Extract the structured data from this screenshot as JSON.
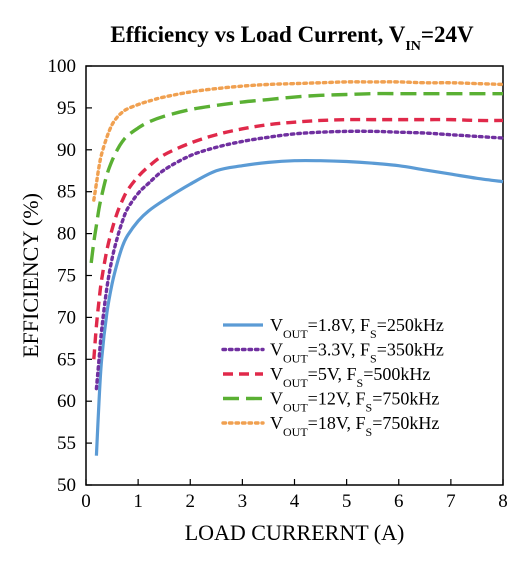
{
  "chart_data": {
    "type": "line",
    "title_parts": [
      "Efficiency vs Load Current, V",
      "IN",
      "=24V"
    ],
    "xlabel": "LOAD CURRERNT (A)",
    "ylabel": "EFFICIENCY (%)",
    "xlim": [
      0,
      8
    ],
    "ylim": [
      50,
      100
    ],
    "x_ticks": [
      0,
      1,
      2,
      3,
      4,
      5,
      6,
      7,
      8
    ],
    "y_ticks": [
      50,
      55,
      60,
      65,
      70,
      75,
      80,
      85,
      90,
      95,
      100
    ],
    "x_tick_labels": [
      "0",
      "1",
      "2",
      "3",
      "4",
      "5",
      "6",
      "7",
      "8"
    ],
    "y_tick_labels": [
      "50",
      "55",
      "60",
      "65",
      "70",
      "75",
      "80",
      "85",
      "90",
      "95",
      "100"
    ],
    "grid": false,
    "legend_position": "bottom-right",
    "series": [
      {
        "legend": [
          "V",
          "OUT",
          "=1.8V, F",
          "S",
          "=250kHz"
        ],
        "color": "#5b9bd5",
        "style": "solid",
        "points": [
          [
            0.2,
            53.5
          ],
          [
            0.25,
            60
          ],
          [
            0.3,
            65
          ],
          [
            0.4,
            70.5
          ],
          [
            0.5,
            74
          ],
          [
            0.6,
            76.5
          ],
          [
            0.7,
            78.5
          ],
          [
            0.8,
            79.8
          ],
          [
            1.0,
            81.5
          ],
          [
            1.2,
            82.7
          ],
          [
            1.5,
            84
          ],
          [
            2.0,
            85.9
          ],
          [
            2.5,
            87.5
          ],
          [
            3.0,
            88.1
          ],
          [
            3.5,
            88.5
          ],
          [
            4.0,
            88.7
          ],
          [
            4.5,
            88.7
          ],
          [
            5.0,
            88.6
          ],
          [
            5.5,
            88.4
          ],
          [
            6.0,
            88.1
          ],
          [
            6.5,
            87.6
          ],
          [
            7.0,
            87.1
          ],
          [
            7.5,
            86.6
          ],
          [
            8.0,
            86.2
          ]
        ]
      },
      {
        "legend": [
          "V",
          "OUT",
          "=3.3V, F",
          "S",
          "=350kHz"
        ],
        "color": "#7030a0",
        "style": "dotted",
        "points": [
          [
            0.2,
            61.5
          ],
          [
            0.25,
            65
          ],
          [
            0.3,
            68.5
          ],
          [
            0.4,
            73.5
          ],
          [
            0.5,
            77
          ],
          [
            0.6,
            79.5
          ],
          [
            0.7,
            81.5
          ],
          [
            0.8,
            83
          ],
          [
            1.0,
            84.8
          ],
          [
            1.2,
            86
          ],
          [
            1.5,
            87.6
          ],
          [
            2.0,
            89.3
          ],
          [
            2.5,
            90.3
          ],
          [
            3.0,
            91
          ],
          [
            3.5,
            91.5
          ],
          [
            4.0,
            91.9
          ],
          [
            4.5,
            92.1
          ],
          [
            5.0,
            92.2
          ],
          [
            5.5,
            92.2
          ],
          [
            6.0,
            92.1
          ],
          [
            6.5,
            92
          ],
          [
            7.0,
            91.8
          ],
          [
            7.5,
            91.6
          ],
          [
            8.0,
            91.4
          ]
        ]
      },
      {
        "legend": [
          "V",
          "OUT",
          "=5V, F",
          "S",
          "=500kHz"
        ],
        "color": "#e0294a",
        "style": "dashed",
        "points": [
          [
            0.15,
            65
          ],
          [
            0.2,
            69
          ],
          [
            0.25,
            72
          ],
          [
            0.3,
            74.5
          ],
          [
            0.4,
            78
          ],
          [
            0.5,
            80.5
          ],
          [
            0.6,
            82.5
          ],
          [
            0.7,
            84
          ],
          [
            0.8,
            85.2
          ],
          [
            1.0,
            86.8
          ],
          [
            1.2,
            88
          ],
          [
            1.5,
            89.4
          ],
          [
            2.0,
            90.8
          ],
          [
            2.5,
            91.8
          ],
          [
            3.0,
            92.5
          ],
          [
            3.5,
            93
          ],
          [
            4.0,
            93.3
          ],
          [
            4.5,
            93.5
          ],
          [
            5.0,
            93.6
          ],
          [
            5.5,
            93.6
          ],
          [
            6.0,
            93.6
          ],
          [
            6.5,
            93.6
          ],
          [
            7.0,
            93.6
          ],
          [
            7.5,
            93.5
          ],
          [
            8.0,
            93.5
          ]
        ]
      },
      {
        "legend": [
          "V",
          "OUT",
          "=12V, F",
          "S",
          "=750kHz"
        ],
        "color": "#5ab033",
        "style": "longdash",
        "points": [
          [
            0.1,
            76.5
          ],
          [
            0.15,
            79
          ],
          [
            0.2,
            81
          ],
          [
            0.25,
            83
          ],
          [
            0.3,
            84.5
          ],
          [
            0.4,
            87
          ],
          [
            0.5,
            88.7
          ],
          [
            0.6,
            90
          ],
          [
            0.7,
            91
          ],
          [
            0.8,
            91.7
          ],
          [
            1.0,
            92.6
          ],
          [
            1.2,
            93.3
          ],
          [
            1.5,
            94
          ],
          [
            2.0,
            94.8
          ],
          [
            2.5,
            95.3
          ],
          [
            3.0,
            95.7
          ],
          [
            3.5,
            96
          ],
          [
            4.0,
            96.3
          ],
          [
            4.5,
            96.5
          ],
          [
            5.0,
            96.6
          ],
          [
            5.5,
            96.7
          ],
          [
            6.0,
            96.7
          ],
          [
            6.5,
            96.7
          ],
          [
            7.0,
            96.7
          ],
          [
            7.5,
            96.7
          ],
          [
            8.0,
            96.7
          ]
        ]
      },
      {
        "legend": [
          "V",
          "OUT",
          "=18V, F",
          "S",
          "=750kHz"
        ],
        "color": "#f0a050",
        "style": "dotted",
        "points": [
          [
            0.15,
            84
          ],
          [
            0.2,
            86
          ],
          [
            0.25,
            88
          ],
          [
            0.3,
            89.5
          ],
          [
            0.4,
            91.5
          ],
          [
            0.5,
            93
          ],
          [
            0.6,
            93.9
          ],
          [
            0.7,
            94.5
          ],
          [
            0.8,
            94.9
          ],
          [
            1.0,
            95.4
          ],
          [
            1.2,
            95.8
          ],
          [
            1.5,
            96.3
          ],
          [
            2.0,
            96.9
          ],
          [
            2.5,
            97.3
          ],
          [
            3.0,
            97.6
          ],
          [
            3.5,
            97.8
          ],
          [
            4.0,
            97.9
          ],
          [
            4.5,
            98
          ],
          [
            5.0,
            98.1
          ],
          [
            5.5,
            98.1
          ],
          [
            6.0,
            98.1
          ],
          [
            6.5,
            98
          ],
          [
            7.0,
            98
          ],
          [
            7.5,
            97.9
          ],
          [
            8.0,
            97.8
          ]
        ]
      }
    ]
  }
}
